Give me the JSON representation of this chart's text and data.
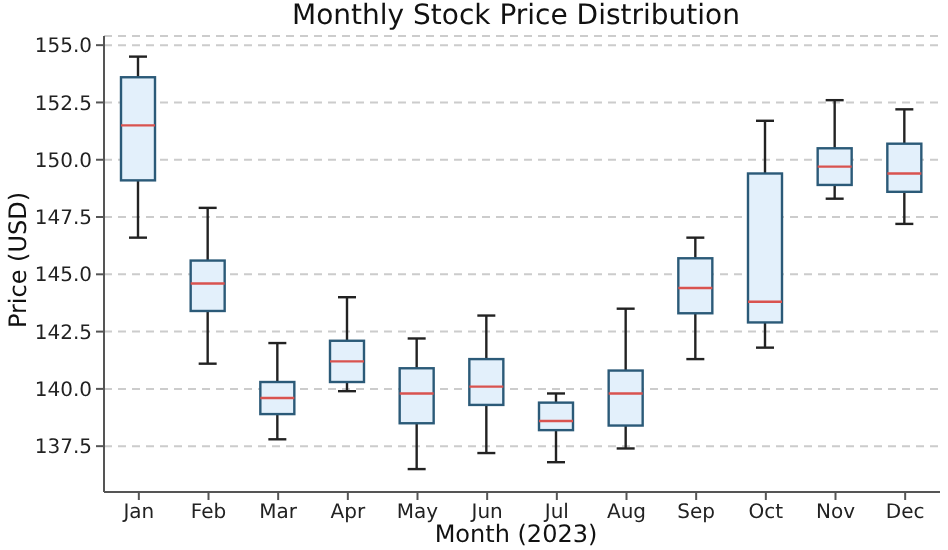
{
  "chart_data": {
    "type": "box",
    "title": "Monthly Stock Price Distribution",
    "xlabel": "Month (2023)",
    "ylabel": "Price (USD)",
    "categories": [
      "Jan",
      "Feb",
      "Mar",
      "Apr",
      "May",
      "Jun",
      "Jul",
      "Aug",
      "Sep",
      "Oct",
      "Nov",
      "Dec"
    ],
    "color": "#e3f0fb",
    "boxes": [
      {
        "low": 146.6,
        "q1": 149.1,
        "median": 151.5,
        "q3": 153.6,
        "high": 154.5
      },
      {
        "low": 141.1,
        "q1": 143.4,
        "median": 144.6,
        "q3": 145.6,
        "high": 147.9
      },
      {
        "low": 137.8,
        "q1": 138.9,
        "median": 139.6,
        "q3": 140.3,
        "high": 142.0
      },
      {
        "low": 139.9,
        "q1": 140.3,
        "median": 141.2,
        "q3": 142.1,
        "high": 144.0
      },
      {
        "low": 136.5,
        "q1": 138.5,
        "median": 139.8,
        "q3": 140.9,
        "high": 142.2
      },
      {
        "low": 137.2,
        "q1": 139.3,
        "median": 140.1,
        "q3": 141.3,
        "high": 143.2
      },
      {
        "low": 136.8,
        "q1": 138.2,
        "median": 138.6,
        "q3": 139.4,
        "high": 139.8
      },
      {
        "low": 137.4,
        "q1": 138.4,
        "median": 139.8,
        "q3": 140.8,
        "high": 143.5
      },
      {
        "low": 141.3,
        "q1": 143.3,
        "median": 144.4,
        "q3": 145.7,
        "high": 146.6
      },
      {
        "low": 141.8,
        "q1": 142.9,
        "median": 143.8,
        "q3": 149.4,
        "high": 151.7
      },
      {
        "low": 148.3,
        "q1": 148.9,
        "median": 149.7,
        "q3": 150.5,
        "high": 152.6
      },
      {
        "low": 147.2,
        "q1": 148.6,
        "median": 149.4,
        "q3": 150.7,
        "high": 152.2
      }
    ],
    "ylim": [
      135.5,
      155.4
    ],
    "yticks": [
      {
        "value": 137.5,
        "label": "137.5"
      },
      {
        "value": 140,
        "label": "140.0"
      },
      {
        "value": 142.5,
        "label": "142.5"
      },
      {
        "value": 145,
        "label": "145.0"
      },
      {
        "value": 147.5,
        "label": "147.5"
      },
      {
        "value": 150,
        "label": "150.0"
      },
      {
        "value": 152.5,
        "label": "152.5"
      },
      {
        "value": 155,
        "label": "155.0"
      }
    ],
    "grid": "y"
  }
}
